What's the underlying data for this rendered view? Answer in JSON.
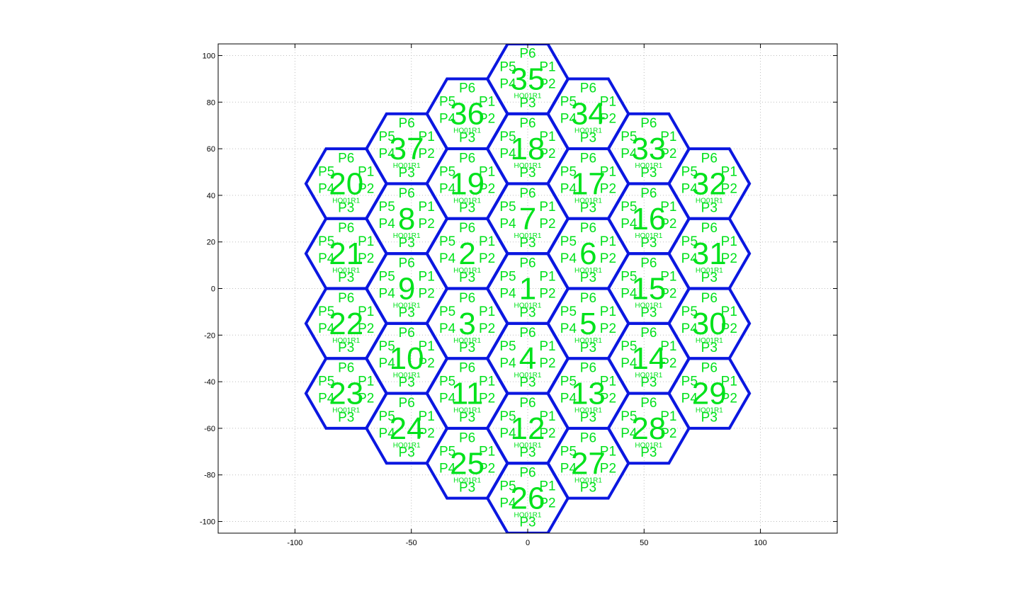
{
  "chart_data": {
    "type": "scatter",
    "title": "",
    "xlabel": "",
    "ylabel": "",
    "xlim": [
      -133,
      133
    ],
    "ylim": [
      -105,
      105
    ],
    "grid": true,
    "x_ticks": [
      -100,
      -50,
      0,
      50,
      100
    ],
    "y_ticks": [
      100,
      80,
      60,
      40,
      20,
      0,
      -20,
      -40,
      -60,
      -80,
      -100
    ],
    "colors": {
      "hexagon": "#0b17e0",
      "label": "#00e21b",
      "axis": "#000000",
      "grid": "#bdbdbd"
    },
    "hex_radius": 17.3,
    "port_labels": [
      "P1",
      "P2",
      "P3",
      "P4",
      "P5",
      "P6"
    ],
    "sub_label": "HO01R1",
    "cells": [
      {
        "id": "1",
        "x": 0,
        "y": 0
      },
      {
        "id": "2",
        "x": -26,
        "y": 15
      },
      {
        "id": "3",
        "x": -26,
        "y": -15
      },
      {
        "id": "4",
        "x": 0,
        "y": -30
      },
      {
        "id": "5",
        "x": 26,
        "y": -15
      },
      {
        "id": "6",
        "x": 26,
        "y": 15
      },
      {
        "id": "7",
        "x": 0,
        "y": 30
      },
      {
        "id": "8",
        "x": -52,
        "y": 30
      },
      {
        "id": "9",
        "x": -52,
        "y": 0
      },
      {
        "id": "10",
        "x": -52,
        "y": -30
      },
      {
        "id": "11",
        "x": -26,
        "y": -45
      },
      {
        "id": "12",
        "x": 0,
        "y": -60
      },
      {
        "id": "13",
        "x": 26,
        "y": -45
      },
      {
        "id": "14",
        "x": 52,
        "y": -30
      },
      {
        "id": "15",
        "x": 52,
        "y": 0
      },
      {
        "id": "16",
        "x": 52,
        "y": 30
      },
      {
        "id": "17",
        "x": 26,
        "y": 45
      },
      {
        "id": "18",
        "x": 0,
        "y": 60
      },
      {
        "id": "19",
        "x": -26,
        "y": 45
      },
      {
        "id": "20",
        "x": -78,
        "y": 45
      },
      {
        "id": "21",
        "x": -78,
        "y": 15
      },
      {
        "id": "22",
        "x": -78,
        "y": -15
      },
      {
        "id": "23",
        "x": -78,
        "y": -45
      },
      {
        "id": "24",
        "x": -52,
        "y": -60
      },
      {
        "id": "25",
        "x": -26,
        "y": -75
      },
      {
        "id": "26",
        "x": 0,
        "y": -90
      },
      {
        "id": "27",
        "x": 26,
        "y": -75
      },
      {
        "id": "28",
        "x": 52,
        "y": -60
      },
      {
        "id": "29",
        "x": 78,
        "y": -45
      },
      {
        "id": "30",
        "x": 78,
        "y": -15
      },
      {
        "id": "31",
        "x": 78,
        "y": 15
      },
      {
        "id": "32",
        "x": 78,
        "y": 45
      },
      {
        "id": "33",
        "x": 52,
        "y": 60
      },
      {
        "id": "34",
        "x": 26,
        "y": 75
      },
      {
        "id": "35",
        "x": 0,
        "y": 90
      },
      {
        "id": "36",
        "x": -26,
        "y": 75
      },
      {
        "id": "37",
        "x": -52,
        "y": 60
      }
    ]
  }
}
